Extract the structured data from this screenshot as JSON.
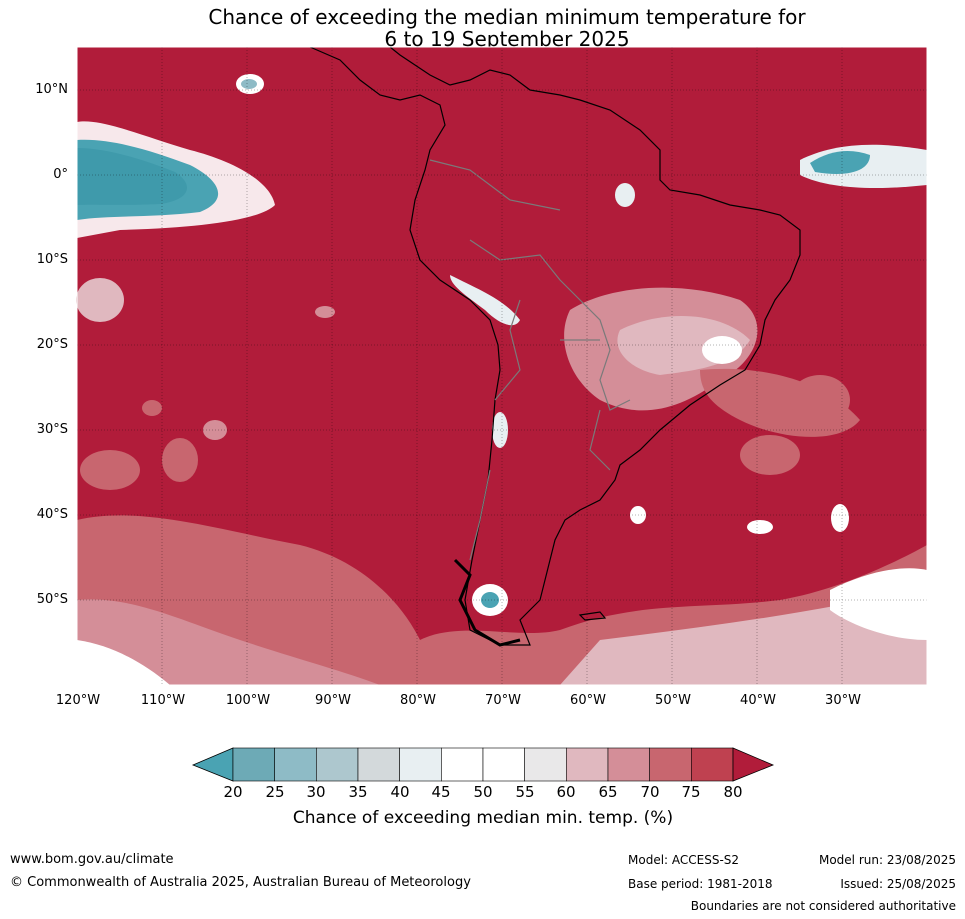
{
  "title": {
    "line1": "Chance of exceeding the median minimum temperature for",
    "line2": "6 to 19 September 2025"
  },
  "map": {
    "lat_labels": [
      "10°N",
      "0°",
      "10°S",
      "20°S",
      "30°S",
      "40°S",
      "50°S"
    ],
    "lon_labels": [
      "120°W",
      "110°W",
      "100°W",
      "90°W",
      "80°W",
      "70°W",
      "60°W",
      "50°W",
      "40°W",
      "30°W"
    ],
    "lat_range": [
      -60,
      15
    ],
    "lon_range": [
      -120,
      -20
    ],
    "gridlines": true,
    "base_color": "#b11c3a"
  },
  "colorbar": {
    "title": "Chance of exceeding median min. temp. (%)",
    "ticks": [
      "20",
      "25",
      "30",
      "35",
      "40",
      "45",
      "50",
      "55",
      "60",
      "65",
      "70",
      "75",
      "80"
    ],
    "under_color": "#4aa3b3",
    "over_color": "#b11c3a",
    "colors": [
      "#6daab6",
      "#8ebbc6",
      "#adc7ce",
      "#d3d9db",
      "#e8eff2",
      "#ffffff",
      "#ffffff",
      "#e9e8e9",
      "#e0b8bf",
      "#d48e98",
      "#c8666f",
      "#bf4150"
    ]
  },
  "footer": {
    "website": "www.bom.gov.au/climate",
    "copyright": "© Commonwealth of Australia 2025, Australian Bureau of Meteorology",
    "model": "Model: ACCESS-S2",
    "model_run": "Model run: 23/08/2025",
    "base_period": "Base period: 1981-2018",
    "issued": "Issued: 25/08/2025",
    "disclaimer": "Boundaries are not considered authoritative"
  }
}
